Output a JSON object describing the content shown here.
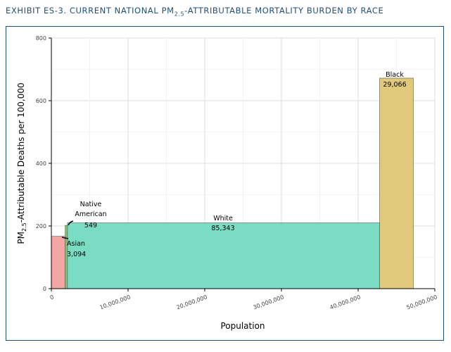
{
  "exhibit": {
    "prefix": "EXHIBIT ES-3.  CURRENT NATIONAL PM",
    "sub": "2.5",
    "suffix": "-ATTRIBUTABLE MORTALITY BURDEN BY RACE"
  },
  "chart_data": {
    "type": "bar",
    "title": "EXHIBIT ES-3. CURRENT NATIONAL PM2.5-ATTRIBUTABLE MORTALITY BURDEN BY RACE",
    "xlabel": "Population",
    "ylabel": "PM2.5-Attributable Deaths per 100,000",
    "ylabel_parts": {
      "pre": "PM",
      "sub": "2.5",
      "post": "-Attributable Deaths per 100,000"
    },
    "xlim": [
      0,
      50000000
    ],
    "ylim": [
      0,
      800
    ],
    "xticks": [
      0,
      10000000,
      20000000,
      30000000,
      40000000,
      50000000
    ],
    "xtick_labels": [
      "0",
      "10,000,000",
      "20,000,000",
      "30,000,000",
      "40,000,000",
      "50,000,000"
    ],
    "yticks": [
      0,
      200,
      400,
      600,
      800
    ],
    "ytick_labels": [
      "0",
      "200",
      "400",
      "600",
      "800"
    ],
    "grid": true,
    "series": [
      {
        "name": "Asian",
        "deaths": "3,094",
        "x_start": 0,
        "population": 1800000,
        "rate": 167,
        "color": "#f4a6a4"
      },
      {
        "name": "Native American",
        "deaths": "549",
        "x_start": 1800000,
        "population": 300000,
        "rate": 202,
        "color": "#8cc46a"
      },
      {
        "name": "White",
        "deaths": "85,343",
        "x_start": 2100000,
        "population": 40700000,
        "rate": 210,
        "color": "#7adcc3"
      },
      {
        "name": "Black",
        "deaths": "29,066",
        "x_start": 42800000,
        "population": 4400000,
        "rate": 672,
        "color": "#e0c97a"
      }
    ],
    "labels": {
      "asian_name": "Asian",
      "asian_value": "3,094",
      "native_line1": "Native",
      "native_line2": "American",
      "native_value": "549",
      "white_name": "White",
      "white_value": "85,343",
      "black_name": "Black",
      "black_value": "29,066"
    }
  }
}
